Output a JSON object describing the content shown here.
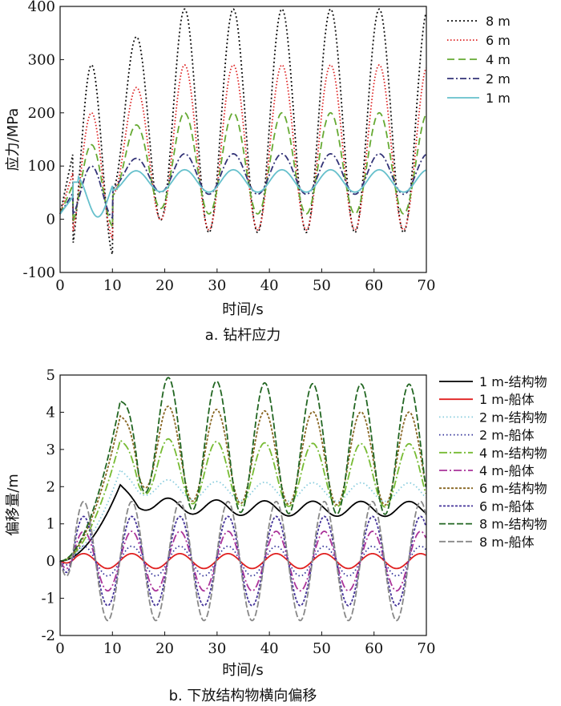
{
  "chart_data": [
    {
      "type": "line",
      "caption": "a. 钻杆应力",
      "xlabel": "时间/s",
      "ylabel": "应力/MPa",
      "xlim": [
        0,
        70
      ],
      "ylim": [
        -100,
        400
      ],
      "xticks": [
        0,
        10,
        20,
        30,
        40,
        50,
        60,
        70
      ],
      "yticks": [
        -100,
        0,
        100,
        200,
        300,
        400
      ],
      "grid": false,
      "legend_position": "top-right",
      "series": [
        {
          "name": "8 m",
          "color": "#111111",
          "dash": "2,3",
          "model": {
            "t0": 0,
            "start": 10,
            "end_ramp": 23,
            "period": 9.3,
            "peak_t": 14.5,
            "center": 185,
            "amp0": 130,
            "amp1": 210,
            "phase_pk1": 6,
            "pk1": 290
          }
        },
        {
          "name": "6 m",
          "color": "#dd2222",
          "dash": "1.5,2.5",
          "model": {
            "t0": 0,
            "start": 10,
            "end_ramp": 23,
            "period": 9.3,
            "peak_t": 14.5,
            "center": 135,
            "amp0": 90,
            "amp1": 155,
            "phase_pk1": 6,
            "pk1": 200
          }
        },
        {
          "name": "4 m",
          "color": "#66aa33",
          "dash": "9,5",
          "model": {
            "t0": 0,
            "start": 10,
            "end_ramp": 23,
            "period": 9.3,
            "peak_t": 14.5,
            "center": 105,
            "amp0": 60,
            "amp1": 95,
            "phase_pk1": 6,
            "pk1": 140
          }
        },
        {
          "name": "2 m",
          "color": "#333377",
          "dash": "8,3,2,3",
          "model": {
            "t0": 0,
            "start": 10,
            "end_ramp": 23,
            "period": 9.3,
            "peak_t": 14.5,
            "center": 85,
            "amp0": 25,
            "amp1": 38,
            "phase_pk1": 6,
            "pk1": 100
          }
        },
        {
          "name": "1 m",
          "color": "#66c0cc",
          "dash": "",
          "model": {
            "t0": 0,
            "start": 10,
            "end_ramp": 23,
            "period": 9.3,
            "peak_t": 14.5,
            "center": 72,
            "amp0": 18,
            "amp1": 21,
            "phase_pk1": 3,
            "pk1": 82
          }
        }
      ]
    },
    {
      "type": "line",
      "caption": "b. 下放结构物横向偏移",
      "xlabel": "时间/s",
      "ylabel": "偏移量/m",
      "xlim": [
        0,
        70
      ],
      "ylim": [
        -2,
        5
      ],
      "xticks": [
        0,
        10,
        20,
        30,
        40,
        50,
        60,
        70
      ],
      "yticks": [
        -2,
        -1,
        0,
        1,
        2,
        3,
        4,
        5
      ],
      "grid": false,
      "legend_position": "top-right",
      "series": [
        {
          "name": "1 m-结构物",
          "color": "#000000",
          "dash": "",
          "kind": "struct",
          "peak": 2.05,
          "center": 1.4,
          "amp": 0.2
        },
        {
          "name": "1 m-船体",
          "color": "#e02020",
          "dash": "",
          "kind": "hull",
          "amp": 0.2
        },
        {
          "name": "2 m-结构物",
          "color": "#88ccdd",
          "dash": "1.5,3",
          "kind": "struct",
          "peak": 2.45,
          "center": 1.85,
          "amp": 0.25
        },
        {
          "name": "2 m-船体",
          "color": "#333399",
          "dash": "1.5,3",
          "kind": "hull",
          "amp": 0.4
        },
        {
          "name": "4 m-结构物",
          "color": "#77bb33",
          "dash": "10,3,2,3",
          "kind": "struct",
          "peak": 3.25,
          "center": 2.3,
          "amp": 0.85
        },
        {
          "name": "4 m-船体",
          "color": "#aa3399",
          "dash": "10,3,2,3",
          "kind": "hull",
          "amp": 0.8
        },
        {
          "name": "6 m-结构物",
          "color": "#886622",
          "dash": "3,2",
          "kind": "struct",
          "peak": 3.9,
          "center": 2.75,
          "amp": 1.25
        },
        {
          "name": "6 m-船体",
          "color": "#443399",
          "dash": "3,2",
          "kind": "hull",
          "amp": 1.2
        },
        {
          "name": "8 m-结构物",
          "color": "#226622",
          "dash": "8,3",
          "kind": "struct",
          "peak": 4.3,
          "center": 3.0,
          "amp": 1.75
        },
        {
          "name": "8 m-船体",
          "color": "#888888",
          "dash": "8,3",
          "kind": "hull",
          "amp": 1.6
        }
      ]
    }
  ]
}
